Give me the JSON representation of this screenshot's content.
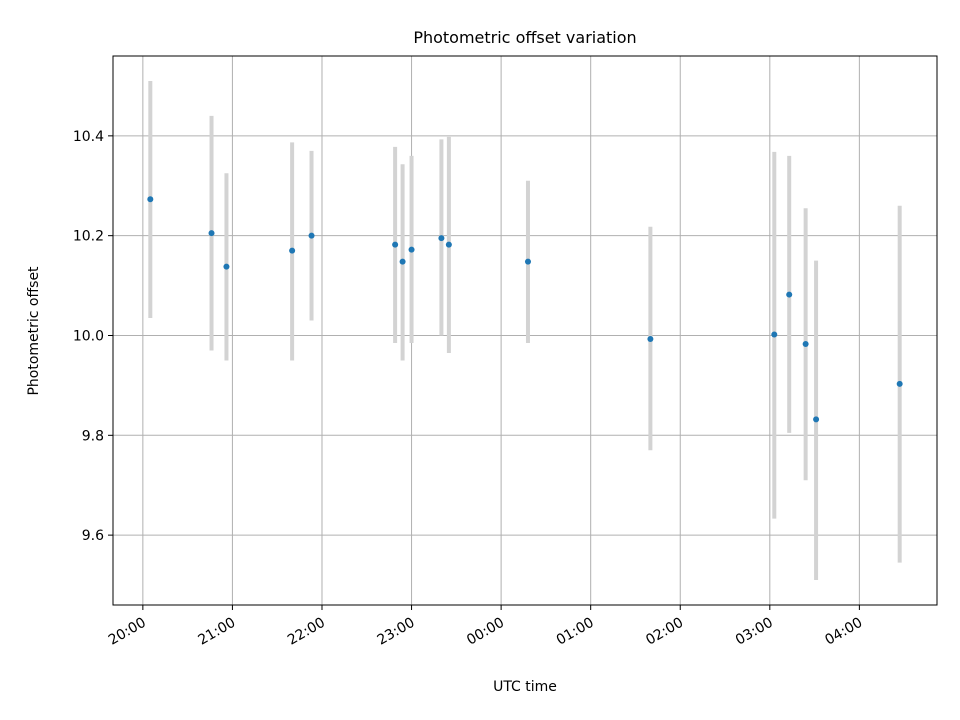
{
  "chart_data": {
    "type": "scatter",
    "title": "Photometric offset variation",
    "xlabel": "UTC time",
    "ylabel": "Photometric offset",
    "x_tick_labels": [
      "20:00",
      "21:00",
      "22:00",
      "23:00",
      "00:00",
      "01:00",
      "02:00",
      "03:00",
      "04:00"
    ],
    "y_tick_labels": [
      "9.6",
      "9.8",
      "10.0",
      "10.2",
      "10.4"
    ],
    "xlim": [
      "19:40",
      "04:52"
    ],
    "ylim": [
      9.46,
      10.56
    ],
    "grid": true,
    "colors": {
      "point": "#1f77b4",
      "errorbar": "#d3d3d3",
      "grid": "#b0b0b0"
    },
    "points": [
      {
        "x": "20:05",
        "y": 10.273,
        "y_low": 10.035,
        "y_high": 10.51
      },
      {
        "x": "20:46",
        "y": 10.205,
        "y_low": 9.97,
        "y_high": 10.44
      },
      {
        "x": "20:56",
        "y": 10.138,
        "y_low": 9.95,
        "y_high": 10.325
      },
      {
        "x": "21:40",
        "y": 10.17,
        "y_low": 9.95,
        "y_high": 10.387
      },
      {
        "x": "21:53",
        "y": 10.2,
        "y_low": 10.03,
        "y_high": 10.37
      },
      {
        "x": "22:49",
        "y": 10.182,
        "y_low": 9.985,
        "y_high": 10.378
      },
      {
        "x": "22:54",
        "y": 10.148,
        "y_low": 9.95,
        "y_high": 10.343
      },
      {
        "x": "23:00",
        "y": 10.172,
        "y_low": 9.985,
        "y_high": 10.36
      },
      {
        "x": "23:20",
        "y": 10.195,
        "y_low": 10.0,
        "y_high": 10.393
      },
      {
        "x": "23:25",
        "y": 10.182,
        "y_low": 9.965,
        "y_high": 10.398
      },
      {
        "x": "00:18",
        "y": 10.148,
        "y_low": 9.985,
        "y_high": 10.31
      },
      {
        "x": "01:40",
        "y": 9.993,
        "y_low": 9.77,
        "y_high": 10.218
      },
      {
        "x": "03:03",
        "y": 10.002,
        "y_low": 9.633,
        "y_high": 10.368
      },
      {
        "x": "03:13",
        "y": 10.082,
        "y_low": 9.805,
        "y_high": 10.36
      },
      {
        "x": "03:24",
        "y": 9.983,
        "y_low": 9.71,
        "y_high": 10.255
      },
      {
        "x": "03:31",
        "y": 9.832,
        "y_low": 9.51,
        "y_high": 10.15
      },
      {
        "x": "04:27",
        "y": 9.903,
        "y_low": 9.545,
        "y_high": 10.26
      }
    ]
  }
}
